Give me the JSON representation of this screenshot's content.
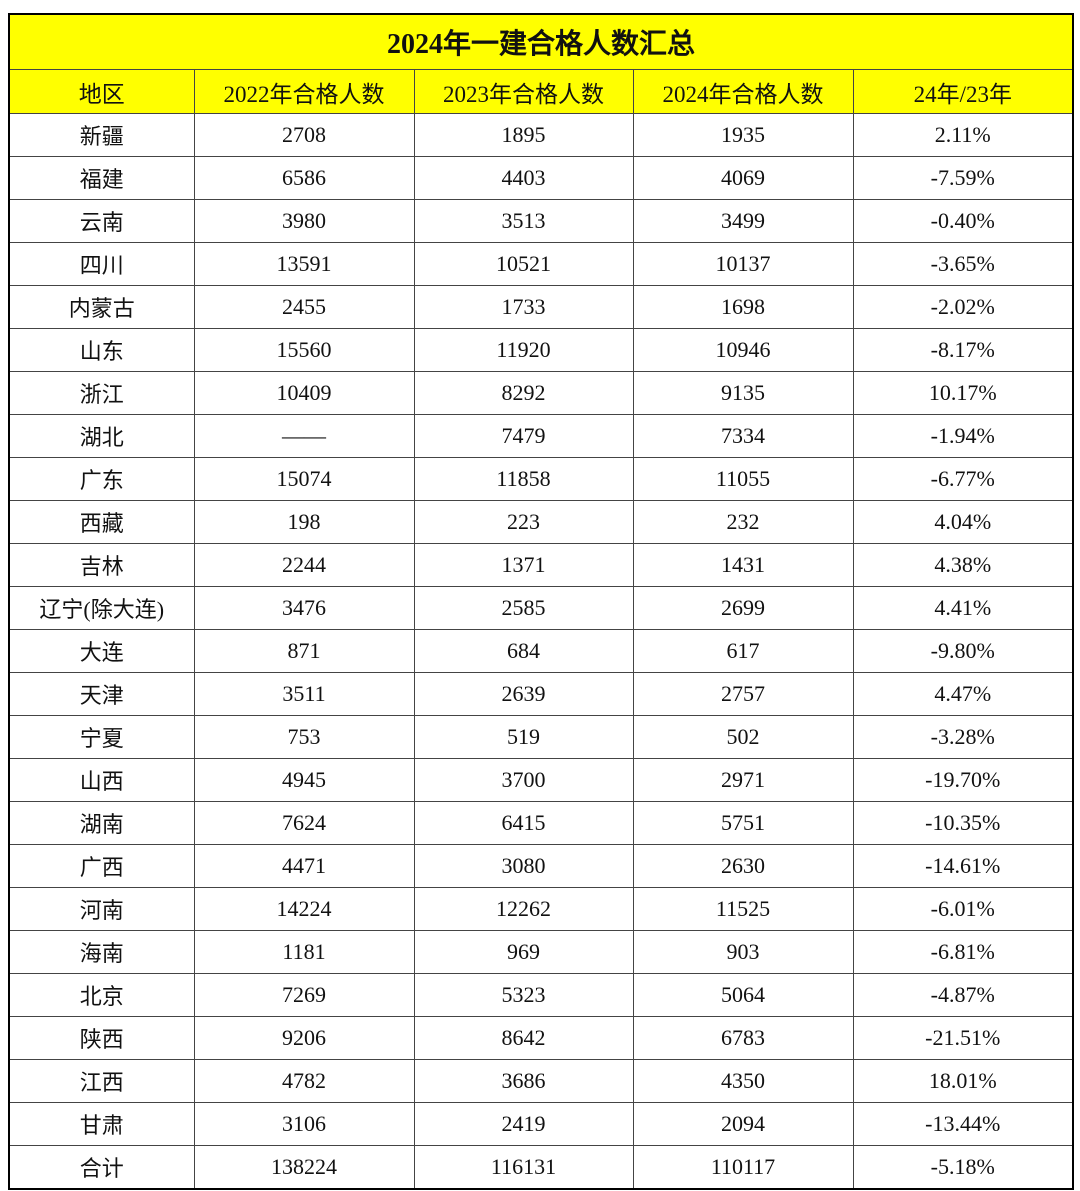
{
  "title": "2024年一建合格人数汇总",
  "table": {
    "columns": [
      "地区",
      "2022年合格人数",
      "2023年合格人数",
      "2024年合格人数",
      "24年/23年"
    ],
    "rows": [
      [
        "新疆",
        "2708",
        "1895",
        "1935",
        "2.11%"
      ],
      [
        "福建",
        "6586",
        "4403",
        "4069",
        "-7.59%"
      ],
      [
        "云南",
        "3980",
        "3513",
        "3499",
        "-0.40%"
      ],
      [
        "四川",
        "13591",
        "10521",
        "10137",
        "-3.65%"
      ],
      [
        "内蒙古",
        "2455",
        "1733",
        "1698",
        "-2.02%"
      ],
      [
        "山东",
        "15560",
        "11920",
        "10946",
        "-8.17%"
      ],
      [
        "浙江",
        "10409",
        "8292",
        "9135",
        "10.17%"
      ],
      [
        "湖北",
        "——",
        "7479",
        "7334",
        "-1.94%"
      ],
      [
        "广东",
        "15074",
        "11858",
        "11055",
        "-6.77%"
      ],
      [
        "西藏",
        "198",
        "223",
        "232",
        "4.04%"
      ],
      [
        "吉林",
        "2244",
        "1371",
        "1431",
        "4.38%"
      ],
      [
        "辽宁(除大连)",
        "3476",
        "2585",
        "2699",
        "4.41%"
      ],
      [
        "大连",
        "871",
        "684",
        "617",
        "-9.80%"
      ],
      [
        "天津",
        "3511",
        "2639",
        "2757",
        "4.47%"
      ],
      [
        "宁夏",
        "753",
        "519",
        "502",
        "-3.28%"
      ],
      [
        "山西",
        "4945",
        "3700",
        "2971",
        "-19.70%"
      ],
      [
        "湖南",
        "7624",
        "6415",
        "5751",
        "-10.35%"
      ],
      [
        "广西",
        "4471",
        "3080",
        "2630",
        "-14.61%"
      ],
      [
        "河南",
        "14224",
        "12262",
        "11525",
        "-6.01%"
      ],
      [
        "海南",
        "1181",
        "969",
        "903",
        "-6.81%"
      ],
      [
        "北京",
        "7269",
        "5323",
        "5064",
        "-4.87%"
      ],
      [
        "陕西",
        "9206",
        "8642",
        "6783",
        "-21.51%"
      ],
      [
        "江西",
        "4782",
        "3686",
        "4350",
        "18.01%"
      ],
      [
        "甘肃",
        "3106",
        "2419",
        "2094",
        "-13.44%"
      ],
      [
        "合计",
        "138224",
        "116131",
        "110117",
        "-5.18%"
      ]
    ]
  }
}
